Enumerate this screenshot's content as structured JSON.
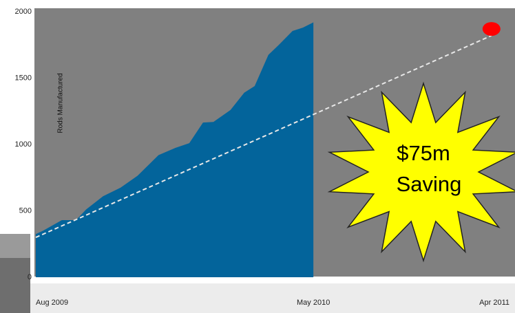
{
  "chart_data": {
    "type": "area",
    "y_label": "Rods Manufactured",
    "color": "#03649b",
    "x": [
      0,
      1.5,
      5.5,
      8.5,
      10.6,
      14.2,
      17.9,
      21.5,
      25.9,
      29.5,
      32.4,
      35.3,
      37.5,
      41.1,
      44,
      46.2,
      49.1,
      51.3,
      54.2,
      56.4,
      58.6
    ],
    "values": [
      325,
      350,
      430,
      430,
      510,
      610,
      675,
      765,
      920,
      975,
      1010,
      1165,
      1170,
      1260,
      1390,
      1440,
      1675,
      1750,
      1855,
      1880,
      1920
    ],
    "trend": {
      "x": [
        0,
        96.2
      ],
      "values": [
        300,
        1820
      ],
      "color": "#e8e8e8"
    },
    "target": {
      "x": 96.2,
      "value": 1870,
      "color": "#ff0000"
    },
    "annotation": [
      "$75m",
      "Saving"
    ],
    "xlim": [
      0,
      100
    ],
    "xticks": [
      {
        "value": 0,
        "label": "Aug 2009"
      },
      {
        "value": 58.6,
        "label": "May 2010"
      },
      {
        "value": 100,
        "label": "Apr 2011"
      }
    ],
    "ylim": [
      0,
      2000
    ],
    "yticks": [
      0,
      500,
      1000,
      1500,
      2000
    ]
  }
}
